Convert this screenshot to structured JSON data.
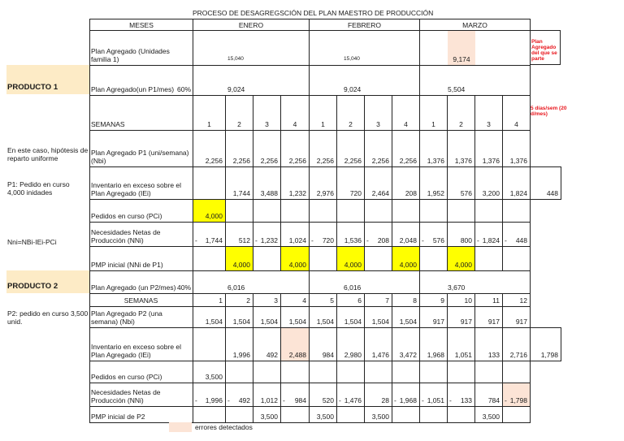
{
  "title": "PROCESO DE DESAGREGSCIÓN DEL PLAN MAESTRO DE PRODUCCIÓN",
  "header": {
    "meses_label": "MESES",
    "months": [
      "ENERO",
      "FEBRERO",
      "MARZO"
    ]
  },
  "side_notes": {
    "producto1": "PRODUCTO 1",
    "producto2": "PRODUCTO 2",
    "hipotesis": "En este caso, hipótesis de reparto uniforme",
    "p1_pedido": "P1: Pedido en curso 4,000 inidades",
    "formula": "Nni=NBi-IEi-PCi",
    "p2_pedido": "P2: pedido en curso 3,500 unid."
  },
  "annotations": {
    "plan_origen": "Plan Agregado del que se parte",
    "dias": "5 días/sem (20 d/mes)"
  },
  "p1": {
    "plan_familia": {
      "label": "Plan Agregado (Unidades familia 1)",
      "values": [
        "15,040",
        "15,040",
        "9,174"
      ]
    },
    "plan_mes": {
      "label": "Plan Agregado(un P1/mes)",
      "pct": "60%",
      "values": [
        "9,024",
        "9,024",
        "5,504"
      ]
    },
    "semanas": {
      "label": "SEMANAS",
      "values": [
        "1",
        "2",
        "3",
        "4",
        "1",
        "2",
        "3",
        "4",
        "1",
        "2",
        "3",
        "4"
      ]
    },
    "nbi": {
      "label": "Plan Agregado P1 (uni/semana)(Nbi)",
      "values": [
        "2,256",
        "2,256",
        "2,256",
        "2,256",
        "2,256",
        "2,256",
        "2,256",
        "2,256",
        "1,376",
        "1,376",
        "1,376",
        "1,376"
      ]
    },
    "iei": {
      "label": "Inventario en exceso sobre el Plan Agregado (IEi)",
      "values": [
        "",
        "1,744",
        "3,488",
        "1,232",
        "2,976",
        "720",
        "2,464",
        "208",
        "1,952",
        "576",
        "3,200",
        "1,824"
      ],
      "extra": "448"
    },
    "pci": {
      "label": "Pedidos en curso (PCi)",
      "values": [
        "4,000",
        "",
        "",
        "",
        "",
        "",
        "",
        "",
        "",
        "",
        "",
        ""
      ]
    },
    "nni": {
      "label": "Necesidades Netas de Producción (NNi)",
      "values": [
        "-1,744",
        "512",
        "-1,232",
        "1,024",
        "-720",
        "1,536",
        "-208",
        "2,048",
        "-576",
        "800",
        "-1,824",
        "-448"
      ]
    },
    "pmp": {
      "label": "PMP inicial (NNi de P1)",
      "values": [
        "",
        "4,000",
        "",
        "4,000",
        "",
        "4,000",
        "",
        "4,000",
        "",
        "4,000",
        "",
        ""
      ]
    }
  },
  "p2": {
    "plan_mes": {
      "label": "Plan Agregado (un P2/mes)",
      "pct": "40%",
      "values": [
        "6,016",
        "6,016",
        "3,670"
      ]
    },
    "semanas": {
      "label": "SEMANAS",
      "values": [
        "1",
        "2",
        "3",
        "4",
        "5",
        "6",
        "7",
        "8",
        "9",
        "10",
        "11",
        "12"
      ]
    },
    "nbi": {
      "label": "Plan Agregado P2 (una semana) (Nbi)",
      "values": [
        "1,504",
        "1,504",
        "1,504",
        "1,504",
        "1,504",
        "1,504",
        "1,504",
        "1,504",
        "917",
        "917",
        "917",
        "917"
      ]
    },
    "iei": {
      "label": "Inventario en exceso sobre el Plan Agregado (IEi)",
      "values": [
        "",
        "1,996",
        "492",
        "2,488",
        "984",
        "2,980",
        "1,476",
        "3,472",
        "1,968",
        "1,051",
        "133",
        "2,716"
      ],
      "extra": "1,798"
    },
    "pci": {
      "label": "Pedidos en curso (PCi)",
      "values": [
        "3,500",
        "",
        "",
        "",
        "",
        "",
        "",
        "",
        "",
        "",
        "",
        ""
      ]
    },
    "nni": {
      "label": "Necesidades Netas de Producción (NNi)",
      "values": [
        "-1,996",
        "-492",
        "1,012",
        "-984",
        "520",
        "-1,476",
        "28",
        "-1,968",
        "-1,051",
        "-133",
        "784",
        "-1,798"
      ]
    },
    "pmp": {
      "label": "PMP inicial de P2",
      "values": [
        "",
        "",
        "3,500",
        "",
        "3,500",
        "",
        "3,500",
        "",
        "",
        "",
        "3,500",
        ""
      ]
    }
  },
  "legend": {
    "error_label": "errores detectados",
    "error_color": "#fce4d6",
    "highlight_color": "#ffff00"
  }
}
